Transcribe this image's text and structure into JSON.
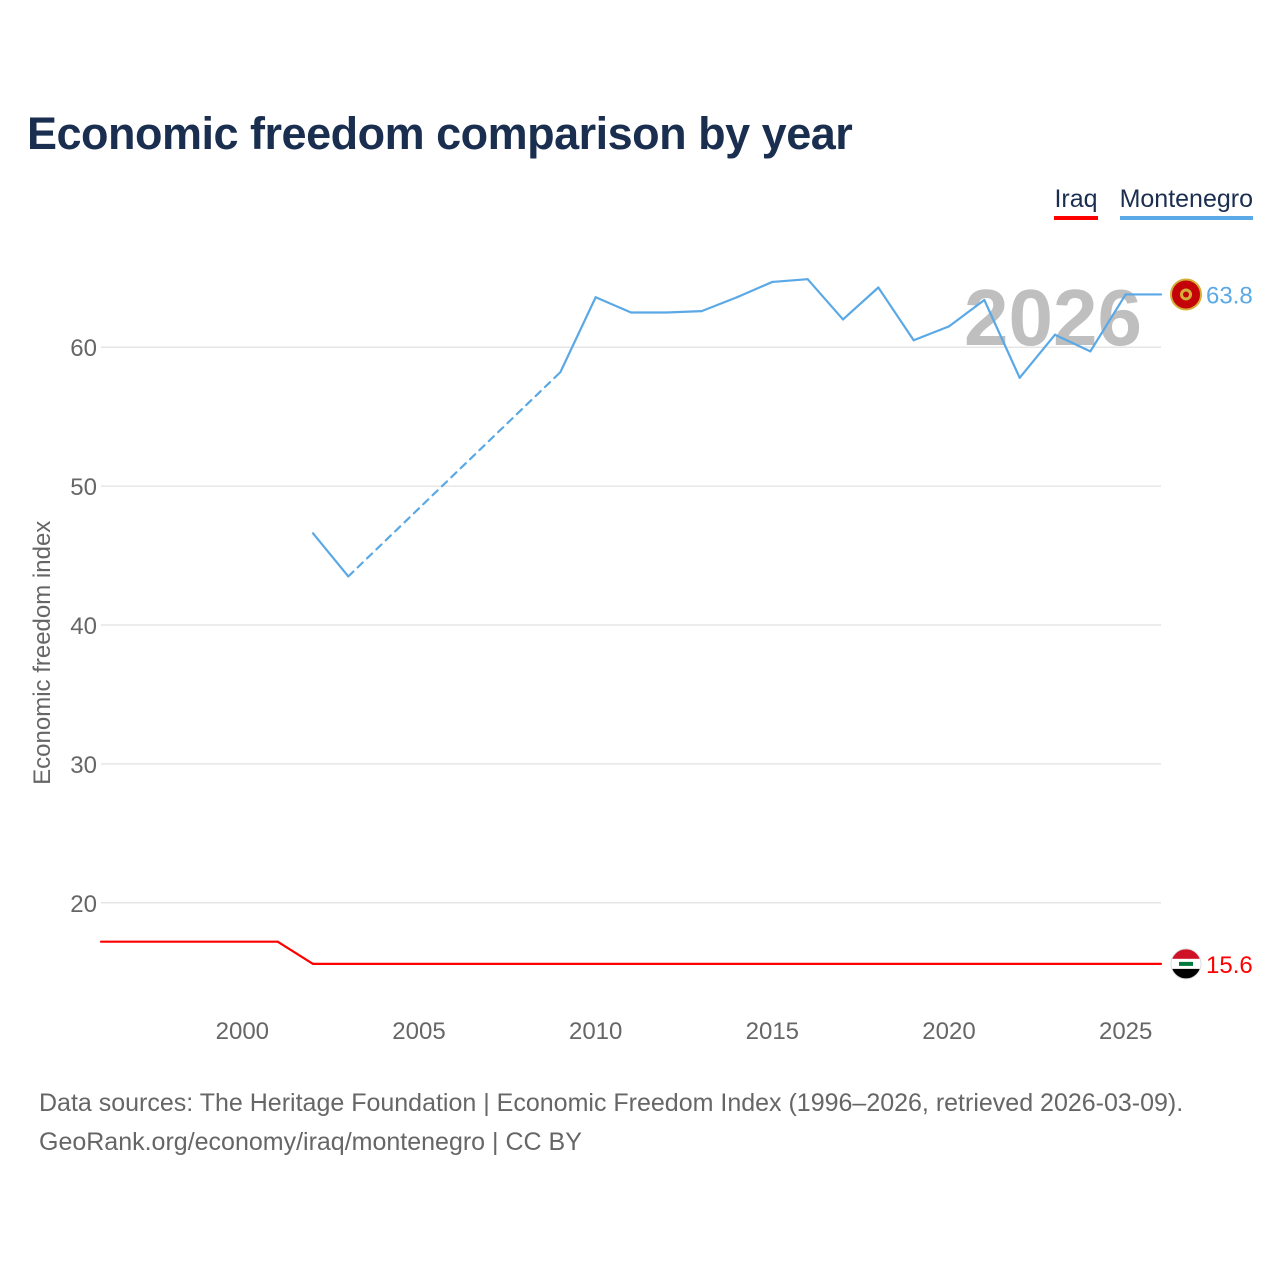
{
  "title": "Economic freedom comparison by year",
  "legend": {
    "iraq": "Iraq",
    "montenegro": "Montenegro"
  },
  "year_watermark": "2026",
  "footer": {
    "line1": "Data sources: The Heritage Foundation | Economic Freedom Index (1996–2026, retrieved 2026-03-09).",
    "line2": "GeoRank.org/economy/iraq/montenegro | CC BY"
  },
  "colors": {
    "iraq": "#ff0000",
    "montenegro": "#5aa9e6",
    "grid": "#e6e6e6",
    "axis_text": "#666666",
    "title": "#1a2e4f",
    "watermark": "#bfbfbf"
  },
  "chart_data": {
    "type": "line",
    "title": "Economic freedom comparison by year",
    "xlabel": "",
    "ylabel": "Economic freedom index",
    "xlim": [
      1996,
      2026
    ],
    "ylim": [
      13,
      67
    ],
    "x_ticks": [
      2000,
      2005,
      2010,
      2015,
      2020,
      2025
    ],
    "y_ticks": [
      20,
      30,
      40,
      50,
      60
    ],
    "grid": true,
    "legend_position": "top-right",
    "series": [
      {
        "name": "Iraq",
        "color": "#ff0000",
        "end_label": "15.6",
        "points": [
          [
            1996,
            17.2
          ],
          [
            2001,
            17.2
          ],
          [
            2002,
            15.6
          ],
          [
            2026,
            15.6
          ]
        ]
      },
      {
        "name": "Montenegro",
        "color": "#5aa9e6",
        "end_label": "63.8",
        "points": [
          [
            2002,
            46.6
          ],
          [
            2003,
            43.5
          ],
          [
            2009,
            58.2
          ],
          [
            2010,
            63.6
          ],
          [
            2011,
            62.5
          ],
          [
            2012,
            62.5
          ],
          [
            2013,
            62.6
          ],
          [
            2014,
            63.6
          ],
          [
            2015,
            64.7
          ],
          [
            2016,
            64.9
          ],
          [
            2017,
            62.0
          ],
          [
            2018,
            64.3
          ],
          [
            2019,
            60.5
          ],
          [
            2020,
            61.5
          ],
          [
            2021,
            63.4
          ],
          [
            2022,
            57.8
          ],
          [
            2023,
            60.9
          ],
          [
            2024,
            59.7
          ],
          [
            2025,
            63.8
          ],
          [
            2026,
            63.8
          ]
        ],
        "dashed_segments": [
          [
            2003,
            2009
          ]
        ]
      }
    ]
  }
}
